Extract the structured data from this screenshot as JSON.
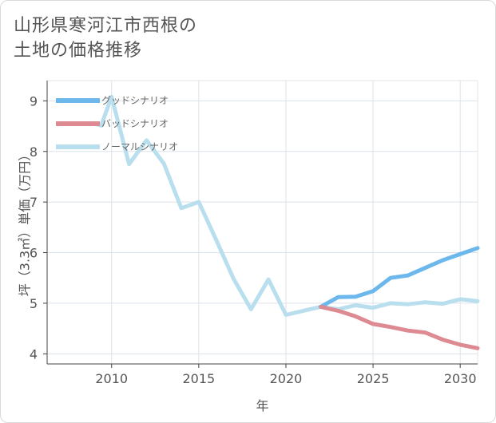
{
  "header": {
    "title_line1": "山形県寒河江市西根の",
    "title_line2": "土地の価格推移"
  },
  "chart_data": {
    "type": "line",
    "title": "山形県寒河江市西根の土地の価格推移",
    "xlabel": "年",
    "ylabel": "坪（3.3㎡）単価（万円）",
    "xlim": [
      2006.3,
      2031
    ],
    "ylim": [
      3.8,
      9.4
    ],
    "x_ticks": [
      2010,
      2015,
      2020,
      2025,
      2030
    ],
    "y_ticks": [
      4,
      5,
      6,
      7,
      8,
      9
    ],
    "grid": true,
    "legend_position": "top-left",
    "series": [
      {
        "name": "グッドシナリオ",
        "color": "#6cb8ec",
        "x": [
          2022,
          2023,
          2024,
          2025,
          2026,
          2027,
          2028,
          2029,
          2030,
          2031
        ],
        "values": [
          4.93,
          5.12,
          5.13,
          5.24,
          5.5,
          5.55,
          5.7,
          5.85,
          5.97,
          6.09
        ]
      },
      {
        "name": "バッドシナリオ",
        "color": "#de8a92",
        "x": [
          2022,
          2023,
          2024,
          2025,
          2026,
          2027,
          2028,
          2029,
          2030,
          2031
        ],
        "values": [
          4.93,
          4.85,
          4.74,
          4.59,
          4.53,
          4.46,
          4.42,
          4.28,
          4.18,
          4.11
        ]
      },
      {
        "name": "ノーマルシナリオ",
        "color": "#b9dfee",
        "x": [
          2009,
          2009.4,
          2010,
          2011,
          2012,
          2013,
          2014,
          2015,
          2016,
          2017,
          2018,
          2019,
          2020,
          2021,
          2022,
          2023,
          2024,
          2025,
          2026,
          2027,
          2028,
          2029,
          2030,
          2031
        ],
        "values": [
          8.55,
          8.51,
          9.08,
          7.75,
          8.22,
          7.76,
          6.88,
          7.0,
          6.25,
          5.48,
          4.88,
          5.47,
          4.77,
          4.85,
          4.93,
          4.88,
          4.96,
          4.91,
          5.0,
          4.98,
          5.02,
          4.99,
          5.08,
          5.04
        ]
      }
    ]
  }
}
